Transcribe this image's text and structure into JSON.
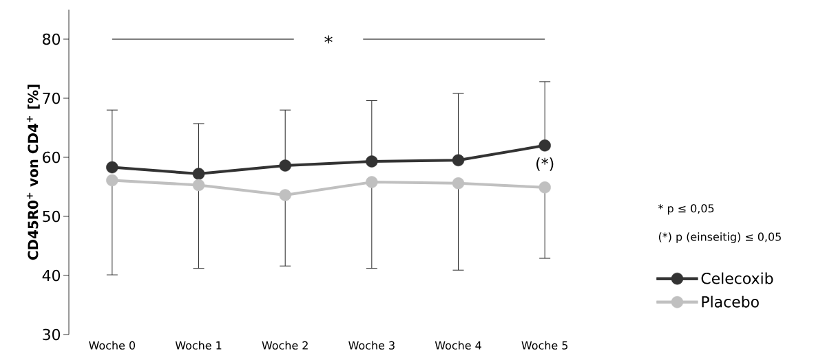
{
  "chart_data": {
    "type": "line",
    "ylabel": "CD45R0$^{+}$ von CD4$^{+}$ [%]",
    "categories": [
      "Woche 0",
      "Woche 1",
      "Woche 2",
      "Woche 3",
      "Woche 4",
      "Woche 5"
    ],
    "series": [
      {
        "name": "Celecoxib",
        "color": "#333333",
        "values": [
          58.3,
          57.2,
          58.6,
          59.3,
          59.5,
          62.0
        ],
        "errors": [
          [
            58.3,
            68.0
          ],
          [
            57.2,
            65.7
          ],
          [
            58.6,
            68.0
          ],
          [
            59.3,
            69.6
          ],
          [
            59.5,
            70.8
          ],
          [
            62.0,
            72.8
          ]
        ]
      },
      {
        "name": "Placebo",
        "color": "#c0c0c0",
        "values": [
          56.1,
          55.3,
          53.6,
          55.8,
          55.6,
          54.9
        ],
        "errors": [
          [
            40.1,
            56.1
          ],
          [
            41.2,
            55.3
          ],
          [
            41.6,
            53.6
          ],
          [
            41.2,
            55.8
          ],
          [
            40.9,
            55.6
          ],
          [
            42.9,
            54.9
          ]
        ]
      }
    ],
    "ylim": [
      30,
      85
    ],
    "yticks": [
      30,
      40,
      50,
      60,
      70,
      80
    ],
    "annotations": [
      "*",
      {
        "text": "(*)",
        "x": "Woche 5",
        "y": 62.0
      },
      "* p ≤ 0,05",
      "(*) p (einseitig) ≤ 0,05"
    ],
    "legend": "right",
    "marker": "circle",
    "line_style": "solid"
  }
}
